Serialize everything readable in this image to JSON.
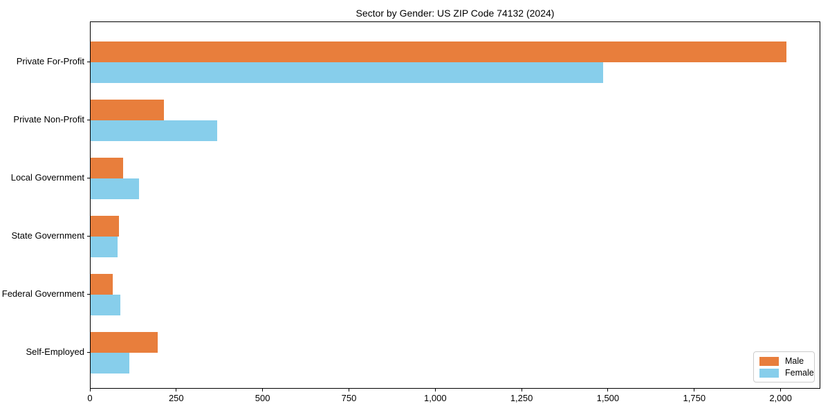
{
  "title": "Sector by Gender: US ZIP Code 74132 (2024)",
  "chart_data": {
    "type": "bar",
    "orientation": "horizontal",
    "title": "Sector by Gender: US ZIP Code 74132 (2024)",
    "categories": [
      "Private For-Profit",
      "Private Non-Profit",
      "Local Government",
      "State Government",
      "Federal Government",
      "Self-Employed"
    ],
    "series": [
      {
        "name": "Male",
        "color": "#e87e3c",
        "values": [
          2014,
          212,
          94,
          83,
          64,
          194
        ]
      },
      {
        "name": "Female",
        "color": "#87ceeb",
        "values": [
          1485,
          367,
          140,
          78,
          87,
          112
        ]
      }
    ],
    "xlabel": "",
    "ylabel": "",
    "xlim": [
      0,
      2115
    ],
    "xticks": [
      0,
      250,
      500,
      750,
      1000,
      1250,
      1500,
      1750,
      2000
    ],
    "xtick_labels": [
      "0",
      "250",
      "500",
      "750",
      "1,000",
      "1,250",
      "1,500",
      "1,750",
      "2,000"
    ],
    "grid": false,
    "legend_position": "lower right",
    "colors": {
      "male": "#e87e3c",
      "female": "#87ceeb",
      "spine": "#000000",
      "legend_border": "#cccccc",
      "background": "#ffffff"
    }
  }
}
